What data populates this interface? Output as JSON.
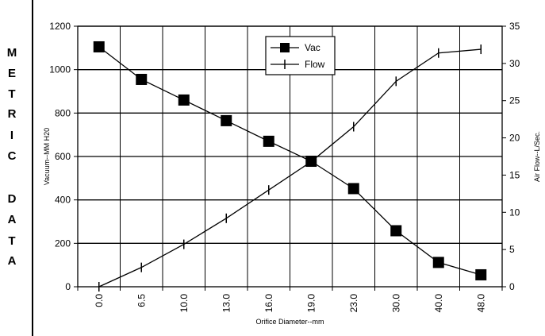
{
  "side_label": [
    "M",
    "E",
    "T",
    "R",
    "I",
    "C",
    "",
    "D",
    "A",
    "T",
    "A"
  ],
  "chart_data": {
    "type": "line",
    "categories": [
      "0.0",
      "6.5",
      "10.0",
      "13.0",
      "16.0",
      "19.0",
      "23.0",
      "30.0",
      "40.0",
      "48.0"
    ],
    "xlabel": "Orifice Diameter--mm",
    "ylabel": "Vacuum--MM H20",
    "y2label": "Air Flow--L/Sec.",
    "ylim": [
      0,
      1200
    ],
    "yticks": [
      0,
      200,
      400,
      600,
      800,
      1000,
      1200
    ],
    "y2lim": [
      0,
      35
    ],
    "y2ticks": [
      0,
      5,
      10,
      15,
      20,
      25,
      30,
      35
    ],
    "grid": true,
    "legend_position": "top-center",
    "series": [
      {
        "name": "Vac",
        "axis": "left",
        "marker": "square",
        "values": [
          1105,
          955,
          860,
          765,
          670,
          578,
          452,
          258,
          112,
          55
        ]
      },
      {
        "name": "Flow",
        "axis": "right",
        "marker": "vertical-tick",
        "values": [
          0,
          2.6,
          5.7,
          9.2,
          13.0,
          16.8,
          21.5,
          27.6,
          31.4,
          31.9
        ]
      }
    ]
  }
}
